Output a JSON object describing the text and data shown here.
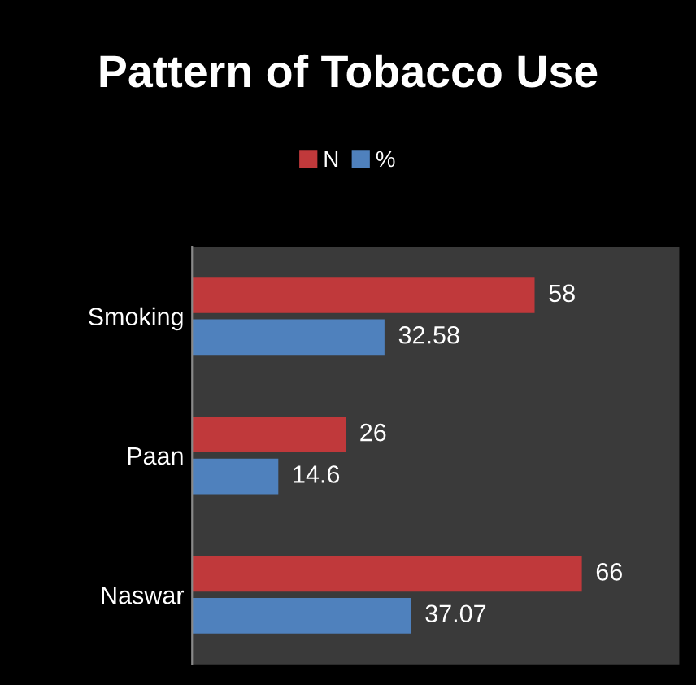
{
  "chart_data": {
    "type": "bar",
    "orientation": "horizontal",
    "title": "Pattern of Tobacco Use",
    "categories": [
      "Smoking",
      "Paan",
      "Naswar"
    ],
    "series": [
      {
        "name": "N",
        "color": "#c0393b",
        "values": [
          58,
          26,
          66
        ]
      },
      {
        "name": "%",
        "color": "#4f81bd",
        "values": [
          32.58,
          14.6,
          37.07
        ]
      }
    ],
    "data_labels": true,
    "legend": "top",
    "grid": false,
    "tick_labels": "y"
  }
}
